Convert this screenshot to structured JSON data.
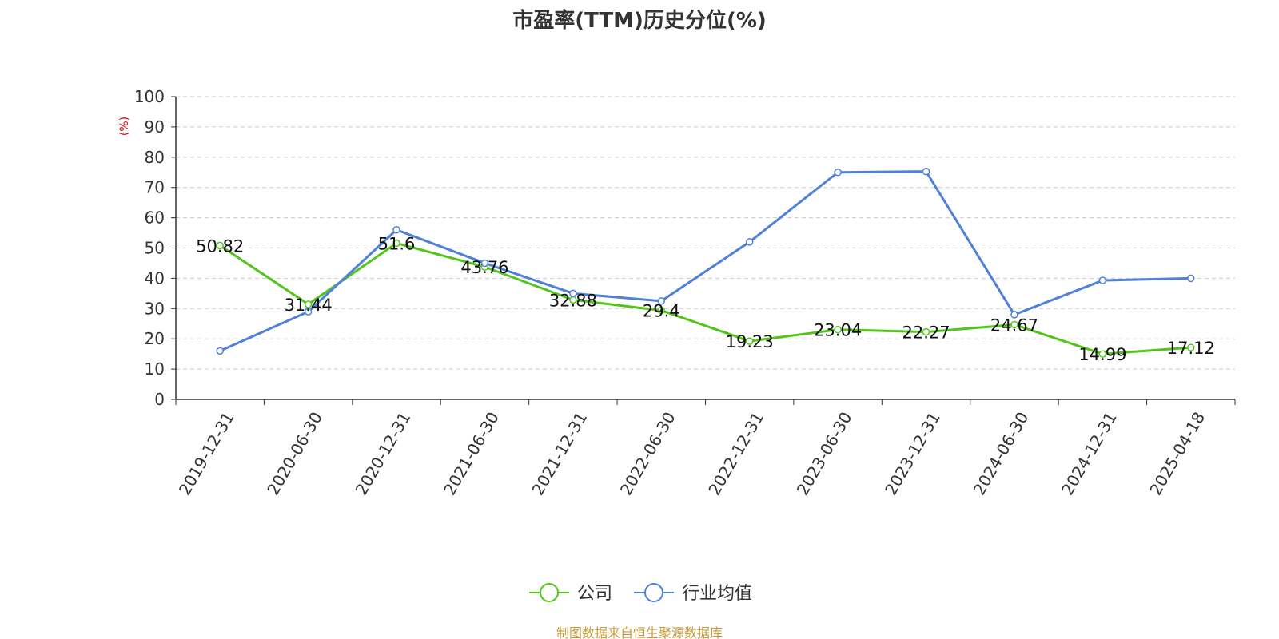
{
  "chart_data": {
    "type": "line",
    "title": "市盈率(TTM)历史分位(%)",
    "ylabel": "(%)",
    "ylim": [
      0,
      100
    ],
    "yticks": [
      0,
      10,
      20,
      30,
      40,
      50,
      60,
      70,
      80,
      90,
      100
    ],
    "grid": true,
    "legend_position": "bottom",
    "categories": [
      "2019-12-31",
      "2020-06-30",
      "2020-12-31",
      "2021-06-30",
      "2021-12-31",
      "2022-06-30",
      "2022-12-31",
      "2023-06-30",
      "2023-12-31",
      "2024-06-30",
      "2024-12-31",
      "2025-04-18"
    ],
    "series": [
      {
        "name": "公司",
        "color": "#52c41a",
        "show_labels": true,
        "values": [
          50.82,
          31.44,
          51.6,
          43.76,
          32.88,
          29.4,
          19.23,
          23.04,
          22.27,
          24.67,
          14.99,
          17.12
        ]
      },
      {
        "name": "行业均值",
        "color": "#4f81d9",
        "show_labels": false,
        "values": [
          16,
          29,
          56,
          45,
          35,
          32.5,
          52,
          75,
          75.3,
          28,
          39.3,
          40
        ]
      }
    ],
    "source": "制图数据来自恒生聚源数据库",
    "source_color": "#c49a3a",
    "ylabel_color": "#e00000"
  }
}
